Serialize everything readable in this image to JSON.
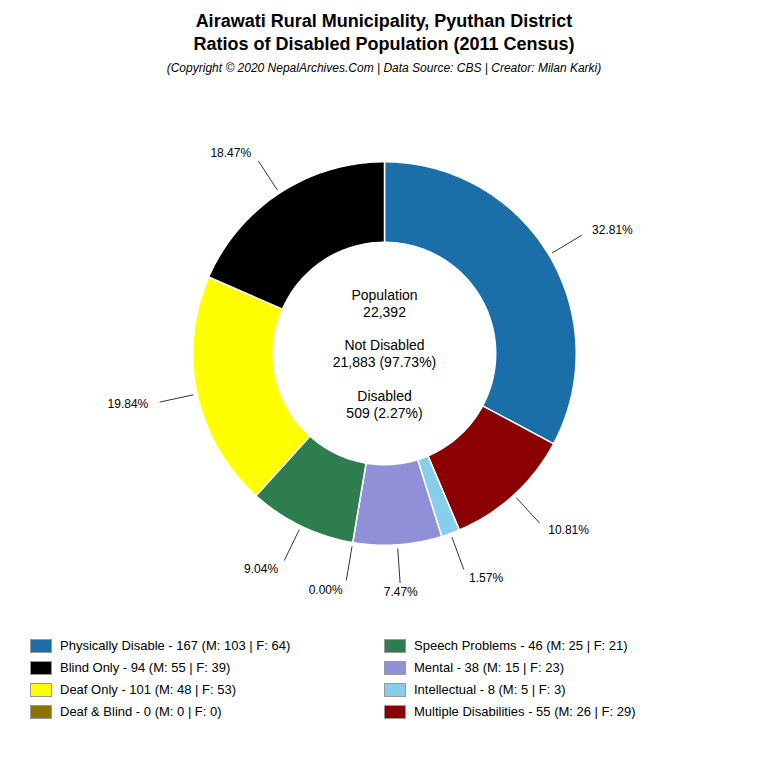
{
  "chart_data": {
    "type": "donut",
    "title": [
      "Airawati Rural Municipality, Pyuthan District",
      "Ratios of Disabled Population (2011 Census)"
    ],
    "subtitle": "(Copyright © 2020 NepalArchives.Com | Data Source: CBS | Creator: Milan Karki)",
    "categories": [
      "Physically Disable - 167 (M: 103 | F: 64)",
      "Multiple Disabilities - 55 (M: 26 | F: 29)",
      "Intellectual - 8 (M: 5 | F: 3)",
      "Mental - 38 (M: 15 | F: 23)",
      "Deaf & Blind - 0 (M: 0 | F: 0)",
      "Speech Problems - 46 (M: 25 | F: 21)",
      "Deaf Only - 101 (M: 48 | F: 53)",
      "Blind Only - 94 (M: 55 | F: 39)"
    ],
    "values": [
      32.81,
      10.81,
      1.57,
      7.47,
      0,
      9.04,
      19.84,
      18.47
    ],
    "value_labels": [
      "32.81%",
      "10.81%",
      "1.57%",
      "7.47%",
      "0.00%",
      "9.04%",
      "19.84%",
      "18.47%"
    ],
    "colors": [
      "#1a6fa8",
      "#8b0000",
      "#87ceeb",
      "#9090d8",
      "#8b7500",
      "#2e7d4f",
      "#ffff00",
      "#000000"
    ],
    "data_labels": true,
    "legend": "bottom",
    "legend_entries": [
      "Physically Disable - 167 (M: 103 | F: 64)",
      "Blind Only - 94 (M: 55 | F: 39)",
      "Deaf Only - 101 (M: 48 | F: 53)",
      "Deaf & Blind - 0 (M: 0 | F: 0)",
      "Speech Problems - 46 (M: 25 | F: 21)",
      "Mental - 38 (M: 15 | F: 23)",
      "Intellectual - 8 (M: 5 | F: 3)",
      "Multiple Disabilities - 55 (M: 26 | F: 29)"
    ],
    "center_text": [
      [
        "Population",
        "22,392"
      ],
      [
        "Not Disabled",
        "21,883 (97.73%)"
      ],
      [
        "Disabled",
        "509 (2.27%)"
      ]
    ]
  }
}
